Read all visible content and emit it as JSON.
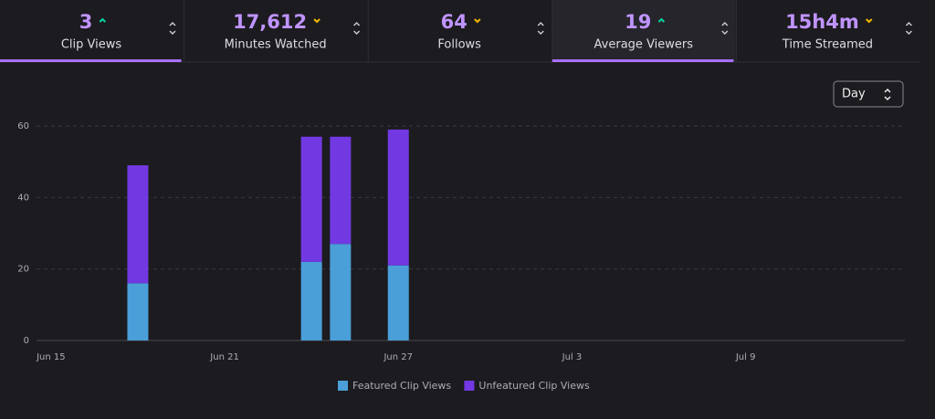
{
  "tabs": [
    {
      "value": "3",
      "label": "Clip Views",
      "trend": "up",
      "active": true
    },
    {
      "value": "17,612",
      "label": "Minutes Watched",
      "trend": "down"
    },
    {
      "value": "64",
      "label": "Follows",
      "trend": "down"
    },
    {
      "value": "19",
      "label": "Average Viewers",
      "trend": "up",
      "active": true,
      "hover": true
    },
    {
      "value": "15h4m",
      "label": "Time Streamed",
      "trend": "down"
    }
  ],
  "dropdown": "Day",
  "chart_data": {
    "type": "stacked-bar",
    "categories": [
      "Jun 15",
      null,
      null,
      null,
      null,
      null,
      "Jun 21",
      null,
      null,
      null,
      null,
      null,
      "Jun 27",
      null,
      null,
      null,
      null,
      null,
      "Jul 3",
      null,
      null,
      null,
      null,
      null,
      "Jul 9",
      null,
      null,
      null,
      null,
      null
    ],
    "series": [
      {
        "name": "Featured Clip Views",
        "color": "#4a9fd8",
        "values": [
          0,
          0,
          0,
          16,
          0,
          0,
          0,
          0,
          0,
          22,
          27,
          0,
          21,
          0,
          0,
          0,
          0,
          0,
          0,
          0,
          0,
          0,
          0,
          0,
          0,
          0,
          0,
          0,
          0,
          0
        ]
      },
      {
        "name": "Unfeatured Clip Views",
        "color": "#7239e2",
        "values": [
          0,
          0,
          0,
          33,
          0,
          0,
          0,
          0,
          0,
          35,
          30,
          0,
          38,
          0,
          0,
          0,
          0,
          0,
          0,
          0,
          0,
          0,
          0,
          0,
          0,
          0,
          0,
          0,
          0,
          0
        ]
      }
    ],
    "ylim": [
      0,
      60
    ],
    "yticks": [
      0,
      20,
      40,
      60
    ],
    "grid": true
  }
}
